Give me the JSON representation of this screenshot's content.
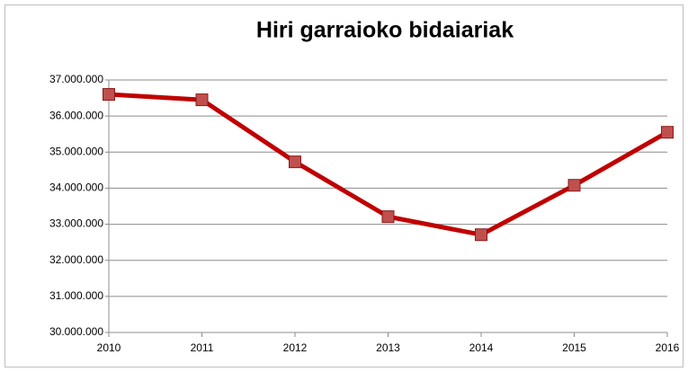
{
  "chart_data": {
    "type": "line",
    "title": "Hiri garraioko bidaiariak",
    "categories": [
      "2010",
      "2011",
      "2012",
      "2013",
      "2014",
      "2015",
      "2016"
    ],
    "series": [
      {
        "color": "#c00000",
        "marker_fill": "#c0504d",
        "marker_stroke": "#8b1a1a",
        "values": [
          36600000,
          36450000,
          34730000,
          33210000,
          32710000,
          34080000,
          35550000
        ]
      }
    ],
    "ylim": [
      30000000,
      37000000
    ],
    "yticks": [
      {
        "value": 30000000,
        "label": "30.000.000"
      },
      {
        "value": 31000000,
        "label": "31.000.000"
      },
      {
        "value": 32000000,
        "label": "32.000.000"
      },
      {
        "value": 33000000,
        "label": "33.000.000"
      },
      {
        "value": 34000000,
        "label": "34.000.000"
      },
      {
        "value": 35000000,
        "label": "35.000.000"
      },
      {
        "value": 36000000,
        "label": "36.000.000"
      },
      {
        "value": 37000000,
        "label": "37.000.000"
      }
    ],
    "grid": true
  }
}
